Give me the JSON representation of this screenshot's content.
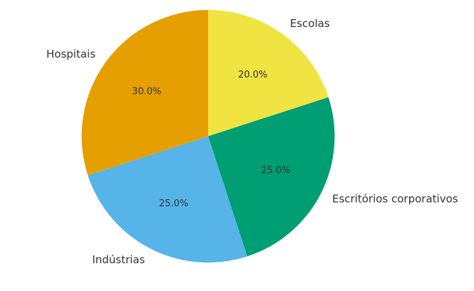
{
  "chart_data": {
    "type": "pie",
    "categories": [
      "Escolas",
      "Escritórios corporativos",
      "Indústrias",
      "Hospitais"
    ],
    "values": [
      20,
      25,
      25,
      30
    ],
    "value_labels": [
      "20.0%",
      "25.0%",
      "25.0%",
      "30.0%"
    ],
    "colors": [
      "#f0e442",
      "#009e73",
      "#56b4e9",
      "#e69f00"
    ],
    "start_angle": 90,
    "direction": "clockwise"
  }
}
